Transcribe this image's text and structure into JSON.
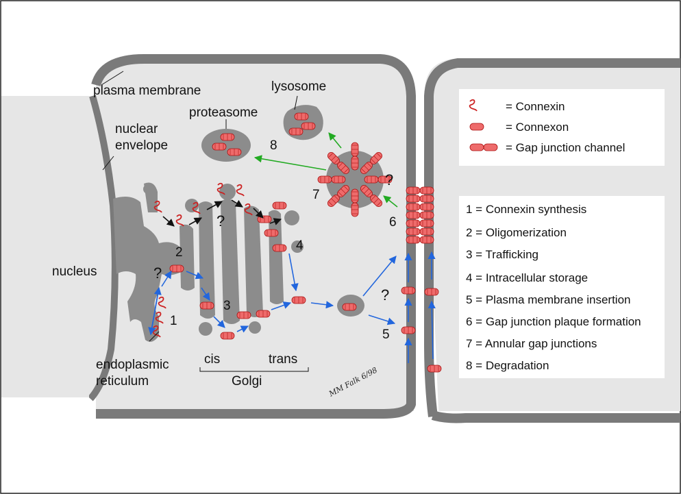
{
  "labels": {
    "plasma_membrane": "plasma membrane",
    "nuclear_envelope_1": "nuclear",
    "nuclear_envelope_2": "envelope",
    "nucleus": "nucleus",
    "er_1": "endoplasmic",
    "er_2": "reticulum",
    "cis": "cis",
    "trans": "trans",
    "golgi": "Golgi",
    "lysosome": "lysosome",
    "proteasome": "proteasome",
    "signature": "MM Falk 6/98"
  },
  "markers": {
    "n1": "1",
    "n2": "2",
    "n3": "3",
    "n4": "4",
    "n5": "5",
    "n6": "6",
    "n7": "7",
    "n8": "8",
    "q": "?"
  },
  "legend": [
    {
      "icon": "connexin-icon",
      "label": "= Connexin"
    },
    {
      "icon": "connexon-icon",
      "label": "= Connexon"
    },
    {
      "icon": "gap-junction-channel-icon",
      "label": "= Gap junction channel"
    }
  ],
  "steps": [
    "1 = Connexin synthesis",
    "2 = Oligomerization",
    "3 = Trafficking",
    "4 = Intracellular storage",
    "5 = Plasma membrane insertion",
    "6 = Gap junction plaque formation",
    "7 = Annular gap junctions",
    "8 = Degradation"
  ],
  "colors": {
    "membrane": "#7a7a7a",
    "cytoplasm": "#e6e6e6",
    "organelle": "#8c8c8c",
    "connexon": "#ee6b6b",
    "connexin": "#cc2222",
    "blue_arrow": "#2266dd",
    "green_arrow": "#22aa22",
    "black_arrow": "#111111"
  }
}
